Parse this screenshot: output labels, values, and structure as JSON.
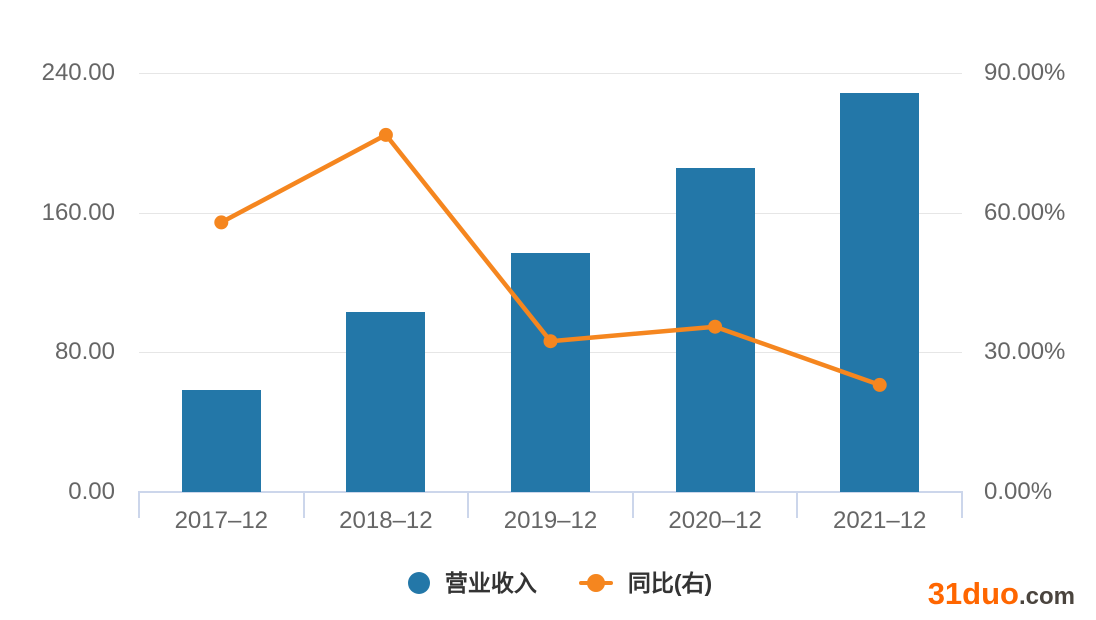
{
  "chart_data": {
    "type": "bar",
    "subtype": "bar+line dual-axis combo",
    "categories": [
      "2017–12",
      "2018–12",
      "2019–12",
      "2020–12",
      "2021–12"
    ],
    "series": [
      {
        "name": "营业收入",
        "type": "bar",
        "axis": "left",
        "color": "#2377a8",
        "values": [
          58.4,
          103.2,
          136.7,
          185.7,
          228.3
        ]
      },
      {
        "name": "同比(右)",
        "type": "line",
        "axis": "right",
        "color": "#f5861f",
        "values": [
          57.9,
          76.7,
          32.4,
          35.5,
          23.0
        ]
      }
    ],
    "left_axis": {
      "min": 0,
      "max": 240,
      "tick_values": [
        0,
        80,
        160,
        240
      ],
      "tick_labels": [
        "0.00",
        "80.00",
        "160.00",
        "240.00"
      ]
    },
    "right_axis": {
      "min": 0,
      "max": 90,
      "tick_values": [
        0,
        30,
        60,
        90
      ],
      "tick_labels": [
        "0.00%",
        "30.00%",
        "60.00%",
        "90.00%"
      ],
      "unit": "%"
    },
    "title": "",
    "grid": true,
    "legend_position": "bottom-center"
  },
  "legend": {
    "items": [
      {
        "label": "营业收入",
        "marker": "circle"
      },
      {
        "label": "同比(右)",
        "marker": "line-dot"
      }
    ]
  },
  "watermark": {
    "brand": "31duo",
    "suffix": ".com",
    "brand_color": "#ff6600",
    "suffix_color": "#4a443e"
  },
  "colors": {
    "bar": "#2377a8",
    "line": "#f5861f",
    "grid": "#e6e6e6",
    "axis": "#ccd6eb",
    "tick_text": "#666666",
    "legend_text": "#333333",
    "background": "#ffffff"
  }
}
